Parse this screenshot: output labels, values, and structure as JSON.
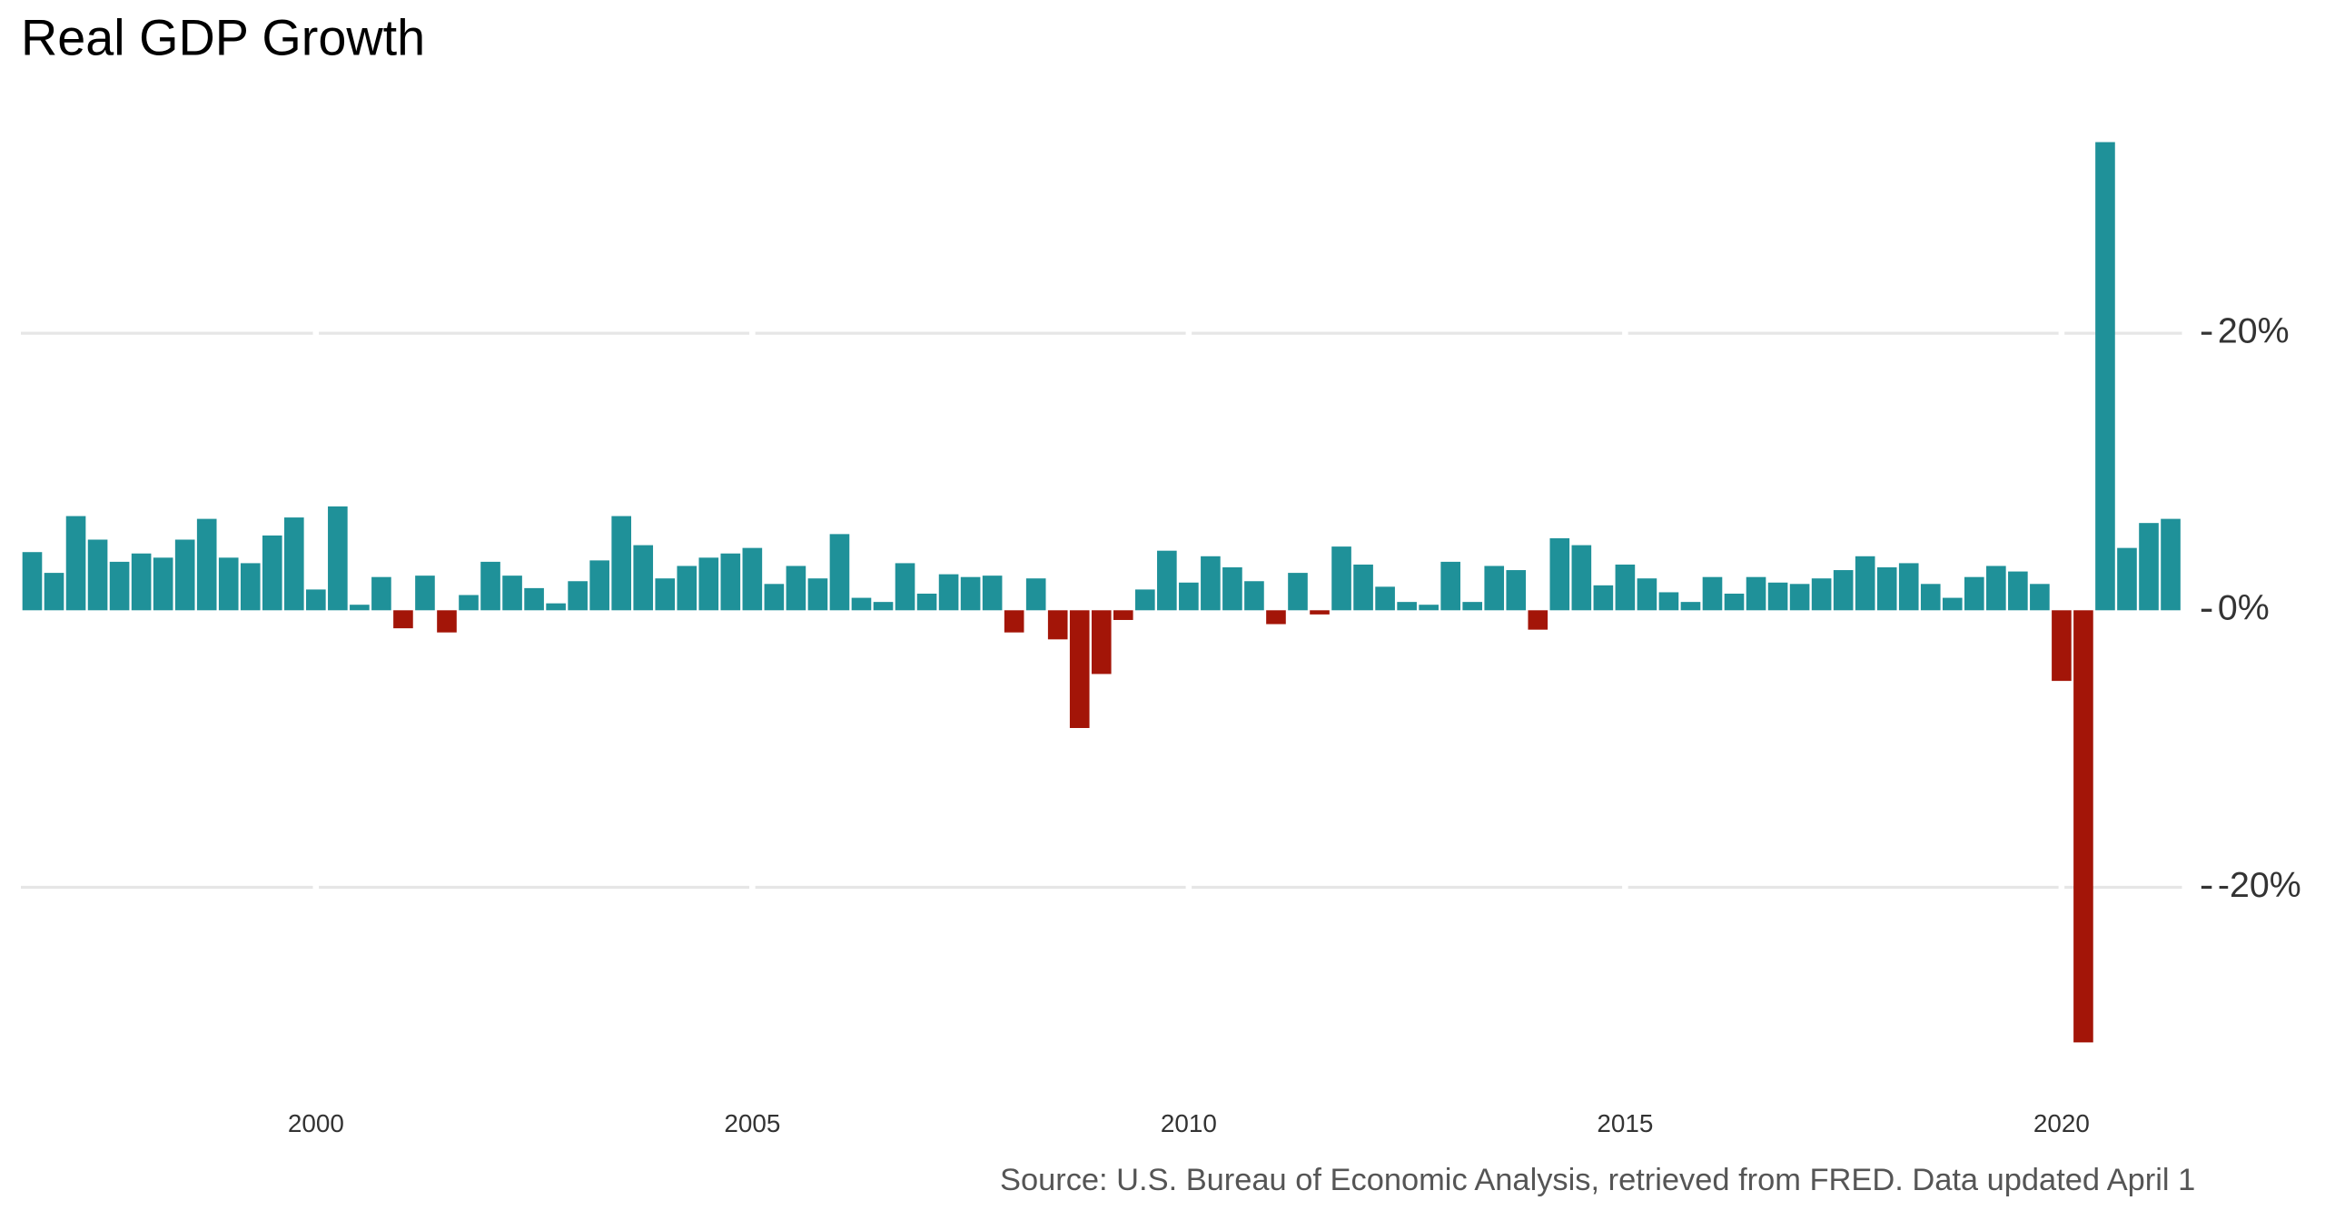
{
  "chart_data": {
    "type": "bar",
    "title": "Real GDP Growth",
    "caption": "Source: U.S. Bureau of Economic Analysis, retrieved from FRED. Data updated April 1",
    "x": [
      1996.75,
      1997,
      1997.25,
      1997.5,
      1997.75,
      1998,
      1998.25,
      1998.5,
      1998.75,
      1999,
      1999.25,
      1999.5,
      1999.75,
      2000,
      2000.25,
      2000.5,
      2000.75,
      2001,
      2001.25,
      2001.5,
      2001.75,
      2002,
      2002.25,
      2002.5,
      2002.75,
      2003,
      2003.25,
      2003.5,
      2003.75,
      2004,
      2004.25,
      2004.5,
      2004.75,
      2005,
      2005.25,
      2005.5,
      2005.75,
      2006,
      2006.25,
      2006.5,
      2006.75,
      2007,
      2007.25,
      2007.5,
      2007.75,
      2008,
      2008.25,
      2008.5,
      2008.75,
      2009,
      2009.25,
      2009.5,
      2009.75,
      2010,
      2010.25,
      2010.5,
      2010.75,
      2011,
      2011.25,
      2011.5,
      2011.75,
      2012,
      2012.25,
      2012.5,
      2012.75,
      2013,
      2013.25,
      2013.5,
      2013.75,
      2014,
      2014.25,
      2014.5,
      2014.75,
      2015,
      2015.25,
      2015.5,
      2015.75,
      2016,
      2016.25,
      2016.5,
      2016.75,
      2017,
      2017.25,
      2017.5,
      2017.75,
      2018,
      2018.25,
      2018.5,
      2018.75,
      2019,
      2019.25,
      2019.5,
      2019.75,
      2020,
      2020.25,
      2020.5,
      2020.75,
      2021,
      2021.25
    ],
    "values": [
      4.2,
      2.7,
      6.8,
      5.1,
      3.5,
      4.1,
      3.8,
      5.1,
      6.6,
      3.8,
      3.4,
      5.4,
      6.7,
      1.5,
      7.5,
      0.4,
      2.4,
      -1.3,
      2.5,
      -1.6,
      1.1,
      3.5,
      2.5,
      1.6,
      0.5,
      2.1,
      3.6,
      6.8,
      4.7,
      2.3,
      3.2,
      3.8,
      4.1,
      4.5,
      1.9,
      3.2,
      2.3,
      5.5,
      0.9,
      0.6,
      3.4,
      1.2,
      2.6,
      2.4,
      2.5,
      -1.6,
      2.3,
      -2.1,
      -8.5,
      -4.6,
      -0.7,
      1.5,
      4.3,
      2.0,
      3.9,
      3.1,
      2.1,
      -1.0,
      2.7,
      -0.3,
      4.6,
      3.3,
      1.7,
      0.6,
      0.4,
      3.5,
      0.6,
      3.2,
      2.9,
      -1.4,
      5.2,
      4.7,
      1.8,
      3.3,
      2.3,
      1.3,
      0.6,
      2.4,
      1.2,
      2.4,
      2.0,
      1.9,
      2.3,
      2.9,
      3.9,
      3.1,
      3.4,
      1.9,
      0.9,
      2.4,
      3.2,
      2.8,
      1.9,
      -5.1,
      -31.2,
      33.8,
      4.5,
      6.3,
      6.6
    ],
    "color_positive": "#1f9199",
    "color_negative": "#a31508",
    "xlim": [
      1996.62,
      2021.38
    ],
    "xticks": [
      2000,
      2005,
      2010,
      2015,
      2020
    ],
    "ylim": [
      -33,
      36
    ],
    "yticks": [
      {
        "value": -20,
        "label": "-20%"
      },
      {
        "value": 0,
        "label": "0%"
      },
      {
        "value": 20,
        "label": "20%"
      }
    ],
    "grid": true
  }
}
